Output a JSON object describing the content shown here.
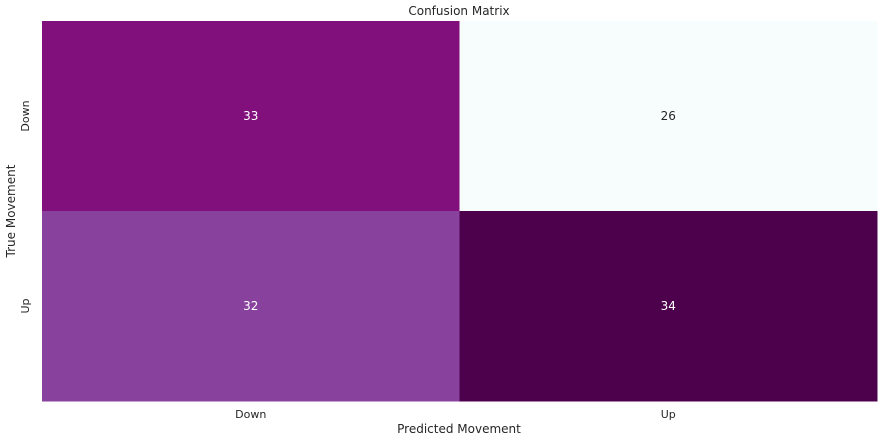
{
  "chart_data": {
    "type": "heatmap",
    "title": "Confusion Matrix",
    "xlabel": "Predicted Movement",
    "ylabel": "True Movement",
    "x_categories": [
      "Down",
      "Up"
    ],
    "y_categories": [
      "Down",
      "Up"
    ],
    "values": [
      [
        33,
        26
      ],
      [
        32,
        34
      ]
    ],
    "colormap": "BuPu",
    "vmin": 26,
    "vmax": 34,
    "colorbar": false,
    "annotations": true,
    "cell_colors": [
      [
        "#810f7c",
        "#f7fcfd"
      ],
      [
        "#88419d",
        "#4d004b"
      ]
    ],
    "annotation_colors": [
      [
        "#ffffff",
        "#262626"
      ],
      [
        "#ffffff",
        "#ffffff"
      ]
    ]
  }
}
